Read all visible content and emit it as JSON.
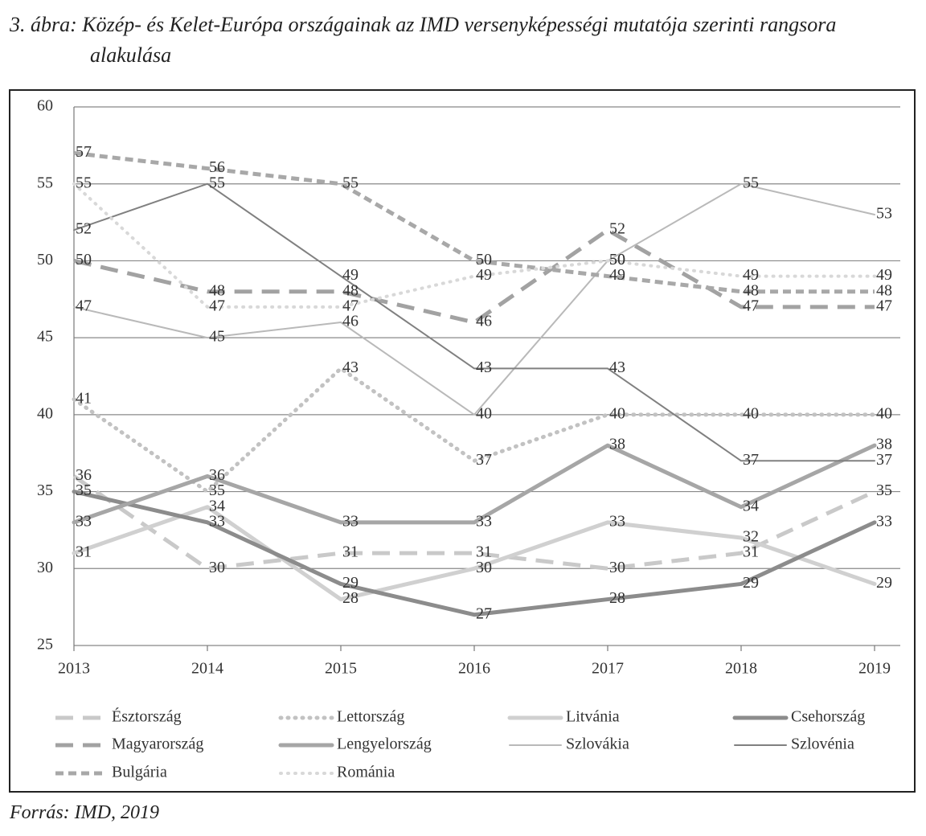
{
  "chart_data": {
    "type": "line",
    "title": "3. ábra: Közép- és Kelet-Európa országainak az IMD versenyképességi mutatója szerinti rangsora alakulása",
    "source": "Forrás: IMD, 2019",
    "categories": [
      "2013",
      "2014",
      "2015",
      "2016",
      "2017",
      "2018",
      "2019"
    ],
    "ylim": [
      25,
      60
    ],
    "yticks": [
      25,
      30,
      35,
      40,
      45,
      50,
      55,
      60
    ],
    "grid": true,
    "series": [
      {
        "name": "Észtország",
        "color": "#c9c9c9",
        "line_style": "dashed",
        "line_width": 5,
        "values": [
          36,
          30,
          31,
          31,
          30,
          31,
          35
        ]
      },
      {
        "name": "Lettország",
        "color": "#c2c2c2",
        "line_style": "dotted",
        "line_width": 5,
        "values": [
          41,
          35,
          43,
          37,
          40,
          40,
          40
        ]
      },
      {
        "name": "Litvánia",
        "color": "#d0d0d0",
        "line_style": "solid",
        "line_width": 5,
        "values": [
          31,
          34,
          28,
          30,
          33,
          32,
          29
        ]
      },
      {
        "name": "Csehország",
        "color": "#8c8c8c",
        "line_style": "solid",
        "line_width": 5,
        "values": [
          35,
          33,
          29,
          27,
          28,
          29,
          33
        ]
      },
      {
        "name": "Magyarország",
        "color": "#a2a2a2",
        "line_style": "dashed",
        "line_width": 5,
        "values": [
          50,
          48,
          48,
          46,
          52,
          47,
          47
        ]
      },
      {
        "name": "Lengyelország",
        "color": "#a6a6a6",
        "line_style": "solid",
        "line_width": 5,
        "values": [
          33,
          36,
          33,
          33,
          38,
          34,
          38
        ]
      },
      {
        "name": "Szlovákia",
        "color": "#b9b9b9",
        "line_style": "solid",
        "line_width": 2,
        "values": [
          47,
          45,
          46,
          40,
          50,
          55,
          53
        ]
      },
      {
        "name": "Szlovénia",
        "color": "#808080",
        "line_style": "solid",
        "line_width": 2,
        "values": [
          52,
          55,
          49,
          43,
          43,
          37,
          37
        ]
      },
      {
        "name": "Bulgária",
        "color": "#a8a8a8",
        "line_style": "short-dashed",
        "line_width": 5,
        "values": [
          57,
          56,
          55,
          50,
          49,
          48,
          48
        ]
      },
      {
        "name": "Románia",
        "color": "#d8d8d8",
        "line_style": "dotted",
        "line_width": 4,
        "values": [
          55,
          47,
          47,
          49,
          50,
          49,
          49
        ]
      }
    ]
  }
}
